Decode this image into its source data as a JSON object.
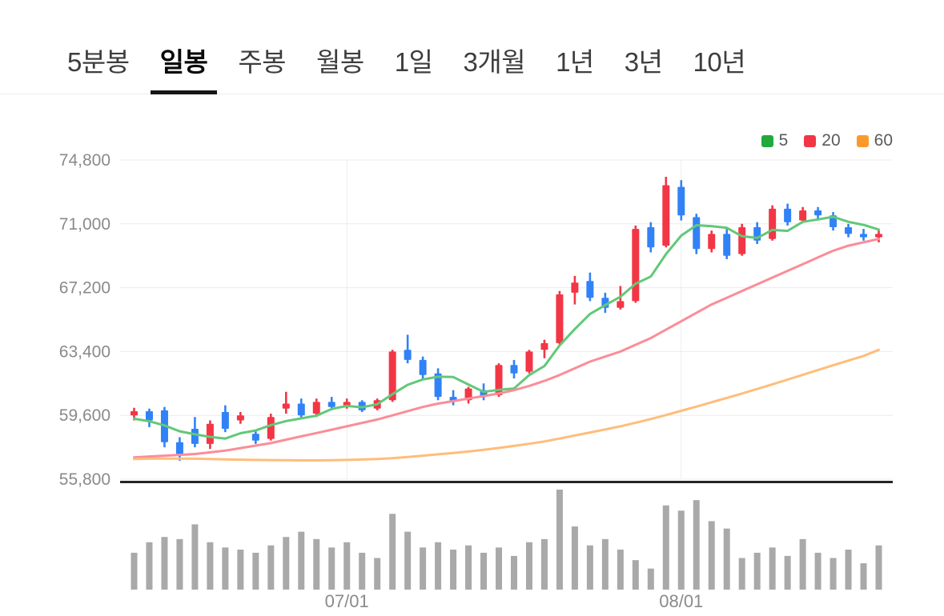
{
  "tabs": {
    "items": [
      {
        "key": "5min",
        "label": "5분봉",
        "active": false
      },
      {
        "key": "daily",
        "label": "일봉",
        "active": true
      },
      {
        "key": "weekly",
        "label": "주봉",
        "active": false
      },
      {
        "key": "monthly",
        "label": "월봉",
        "active": false
      },
      {
        "key": "1day",
        "label": "1일",
        "active": false
      },
      {
        "key": "3months",
        "label": "3개월",
        "active": false
      },
      {
        "key": "1year",
        "label": "1년",
        "active": false
      },
      {
        "key": "3years",
        "label": "3년",
        "active": false
      },
      {
        "key": "10years",
        "label": "10년",
        "active": false
      }
    ]
  },
  "legend": {
    "items": [
      {
        "key": "ma5",
        "label": "5",
        "color": "#22a93c"
      },
      {
        "key": "ma20",
        "label": "20",
        "color": "#f23645"
      },
      {
        "key": "ma60",
        "label": "60",
        "color": "#fb9a2c"
      }
    ]
  },
  "chart_data": {
    "type": "candlestick",
    "title": "",
    "ylim": [
      55800,
      74800
    ],
    "y_ticks": [
      74800,
      71000,
      67200,
      63400,
      59600,
      55800
    ],
    "x_ticks": [
      {
        "index": 14,
        "label": "07/01"
      },
      {
        "index": 36,
        "label": "08/01"
      }
    ],
    "legend_position": "top-right",
    "grid": true,
    "candles": [
      [
        59600,
        60050,
        59300,
        59850
      ],
      [
        59850,
        60000,
        58900,
        59300
      ],
      [
        59900,
        60100,
        57700,
        58000
      ],
      [
        58000,
        58300,
        56900,
        57300
      ],
      [
        58800,
        59500,
        57700,
        57900
      ],
      [
        57900,
        59300,
        57600,
        59100
      ],
      [
        59800,
        60200,
        58600,
        58800
      ],
      [
        59300,
        59800,
        59100,
        59600
      ],
      [
        58500,
        58700,
        57900,
        58100
      ],
      [
        58200,
        59700,
        58100,
        59500
      ],
      [
        60000,
        61000,
        59700,
        60300
      ],
      [
        60300,
        60600,
        59400,
        59600
      ],
      [
        59700,
        60600,
        59500,
        60400
      ],
      [
        60400,
        60700,
        59900,
        60100
      ],
      [
        60200,
        60600,
        60000,
        60400
      ],
      [
        60400,
        60500,
        59800,
        59900
      ],
      [
        60000,
        60600,
        59900,
        60500
      ],
      [
        60500,
        63500,
        60400,
        63400
      ],
      [
        63500,
        64400,
        62700,
        62900
      ],
      [
        62900,
        63100,
        61700,
        62000
      ],
      [
        62100,
        62400,
        60500,
        60700
      ],
      [
        60700,
        61100,
        60200,
        60400
      ],
      [
        60500,
        61300,
        60300,
        61200
      ],
      [
        61100,
        61500,
        60500,
        60700
      ],
      [
        60800,
        62700,
        60700,
        62600
      ],
      [
        62600,
        62900,
        61800,
        62100
      ],
      [
        62200,
        63500,
        62100,
        63400
      ],
      [
        63500,
        64100,
        63000,
        63900
      ],
      [
        63900,
        67000,
        63800,
        66800
      ],
      [
        66900,
        67900,
        66200,
        67500
      ],
      [
        67600,
        68100,
        66400,
        66600
      ],
      [
        66600,
        66900,
        65700,
        66000
      ],
      [
        66000,
        67300,
        65900,
        66400
      ],
      [
        66400,
        70900,
        66300,
        70700
      ],
      [
        70800,
        71100,
        69300,
        69600
      ],
      [
        69700,
        73800,
        69600,
        73300
      ],
      [
        73200,
        73600,
        71200,
        71500
      ],
      [
        71400,
        71600,
        69200,
        69500
      ],
      [
        69500,
        70600,
        69300,
        70400
      ],
      [
        70400,
        70700,
        68900,
        69100
      ],
      [
        69200,
        71000,
        69100,
        70800
      ],
      [
        70800,
        71100,
        69800,
        70000
      ],
      [
        70100,
        72100,
        70000,
        71900
      ],
      [
        71900,
        72200,
        70900,
        71100
      ],
      [
        71200,
        72000,
        71100,
        71800
      ],
      [
        71800,
        72000,
        71300,
        71500
      ],
      [
        71500,
        71700,
        70600,
        70800
      ],
      [
        70800,
        71000,
        70200,
        70400
      ],
      [
        70400,
        70700,
        70000,
        70200
      ],
      [
        70200,
        70600,
        69900,
        70400
      ]
    ],
    "ma5": [
      59400,
      59250,
      59000,
      58650,
      58470,
      58320,
      58220,
      58540,
      58700,
      59020,
      59260,
      59420,
      59580,
      59980,
      60160,
      60080,
      60260,
      60860,
      61420,
      61740,
      61900,
      61880,
      61440,
      61000,
      61120,
      61200,
      62000,
      62540,
      63760,
      64740,
      65640,
      66160,
      66660,
      67440,
      67860,
      69200,
      70300,
      70920,
      70860,
      70760,
      70260,
      70160,
      70640,
      70580,
      71120,
      71260,
      71420,
      71120,
      70940,
      70660
    ],
    "ma20": [
      57100,
      57150,
      57200,
      57250,
      57300,
      57400,
      57500,
      57650,
      57800,
      57950,
      58150,
      58350,
      58550,
      58750,
      58950,
      59150,
      59350,
      59600,
      59850,
      60100,
      60300,
      60450,
      60600,
      60750,
      60900,
      61100,
      61350,
      61650,
      62000,
      62400,
      62800,
      63100,
      63400,
      63800,
      64200,
      64700,
      65200,
      65700,
      66200,
      66600,
      67000,
      67400,
      67800,
      68200,
      68600,
      69000,
      69400,
      69700,
      69900,
      70100
    ],
    "ma60": [
      57000,
      57020,
      57030,
      57030,
      57020,
      57000,
      56980,
      56960,
      56950,
      56940,
      56930,
      56920,
      56920,
      56930,
      56950,
      56970,
      57000,
      57050,
      57120,
      57200,
      57280,
      57360,
      57450,
      57550,
      57660,
      57780,
      57910,
      58050,
      58220,
      58400,
      58580,
      58760,
      58950,
      59160,
      59380,
      59620,
      59870,
      60120,
      60380,
      60640,
      60900,
      61170,
      61450,
      61730,
      62010,
      62300,
      62580,
      62860,
      63140,
      63500
    ],
    "volume": [
      35,
      45,
      50,
      48,
      62,
      45,
      40,
      38,
      35,
      42,
      50,
      55,
      48,
      40,
      45,
      35,
      30,
      72,
      55,
      40,
      45,
      38,
      42,
      35,
      40,
      32,
      45,
      48,
      95,
      60,
      42,
      48,
      38,
      28,
      20,
      80,
      75,
      85,
      65,
      58,
      30,
      35,
      40,
      32,
      48,
      35,
      30,
      38,
      25,
      42
    ],
    "colors": {
      "up": "#f23645",
      "down": "#3182f6",
      "ma5": "#62c878",
      "ma20": "#fb8d97",
      "ma60": "#ffbd7a",
      "volume": "#a9a9a9",
      "grid": "#ececec",
      "axis_label": "#8a8a8a",
      "separator": "#262626"
    }
  }
}
